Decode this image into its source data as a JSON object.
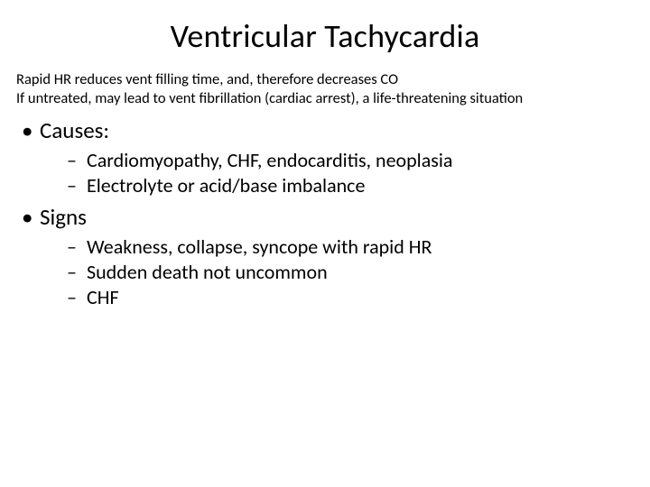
{
  "title": "Ventricular Tachycardia",
  "intro": {
    "line1": "Rapid HR reduces vent filling time, and, therefore decreases CO",
    "line2": "If untreated, may lead to vent fibrillation (cardiac arrest), a life-threatening situation"
  },
  "sections": [
    {
      "label": "Causes:",
      "items": [
        "Cardiomyopathy, CHF, endocarditis, neoplasia",
        "Electrolyte or acid/base imbalance"
      ]
    },
    {
      "label": "Signs",
      "items": [
        "Weakness, collapse, syncope with rapid HR",
        "Sudden death not uncommon",
        "CHF"
      ]
    }
  ],
  "style": {
    "background_color": "#ffffff",
    "text_color": "#000000",
    "title_fontsize": 36,
    "intro_fontsize": 16.5,
    "level1_fontsize": 25,
    "level2_fontsize": 22,
    "font_family": "Calibri"
  }
}
